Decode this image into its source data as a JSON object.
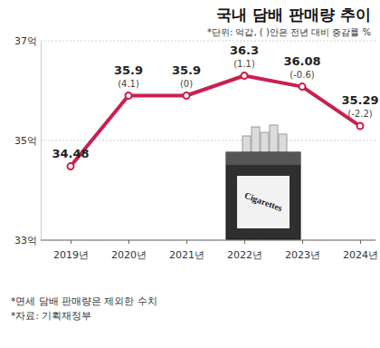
{
  "chart_data": {
    "type": "line",
    "title": "국내 담배 판매량 추이",
    "subtitle": "*단위: 억갑, ( )안은 전년 대비 증감률 %",
    "categories": [
      "2019년",
      "2020년",
      "2021년",
      "2022년",
      "2023년",
      "2024년"
    ],
    "values": [
      34.48,
      35.9,
      35.9,
      36.3,
      36.08,
      35.29
    ],
    "change_values": [
      null,
      4.1,
      0,
      1.1,
      -0.6,
      -2.2
    ],
    "change_labels": [
      null,
      "(4.1)",
      "(0)",
      "(1.1)",
      "(-0.6)",
      "(-2.2)"
    ],
    "color": "#c8204e",
    "marker": "circle",
    "ylim": [
      33,
      37
    ],
    "yticks": [
      {
        "value": 33,
        "label": "33억"
      },
      {
        "value": 35,
        "label": "35억"
      },
      {
        "value": 37,
        "label": "37억"
      }
    ],
    "grid": true,
    "data_labels": true,
    "annotations": [
      "Cigarettes"
    ],
    "notes": [
      "*면세 담배 판매량은 제외한 수치",
      "*자료: 기획재정부"
    ]
  }
}
